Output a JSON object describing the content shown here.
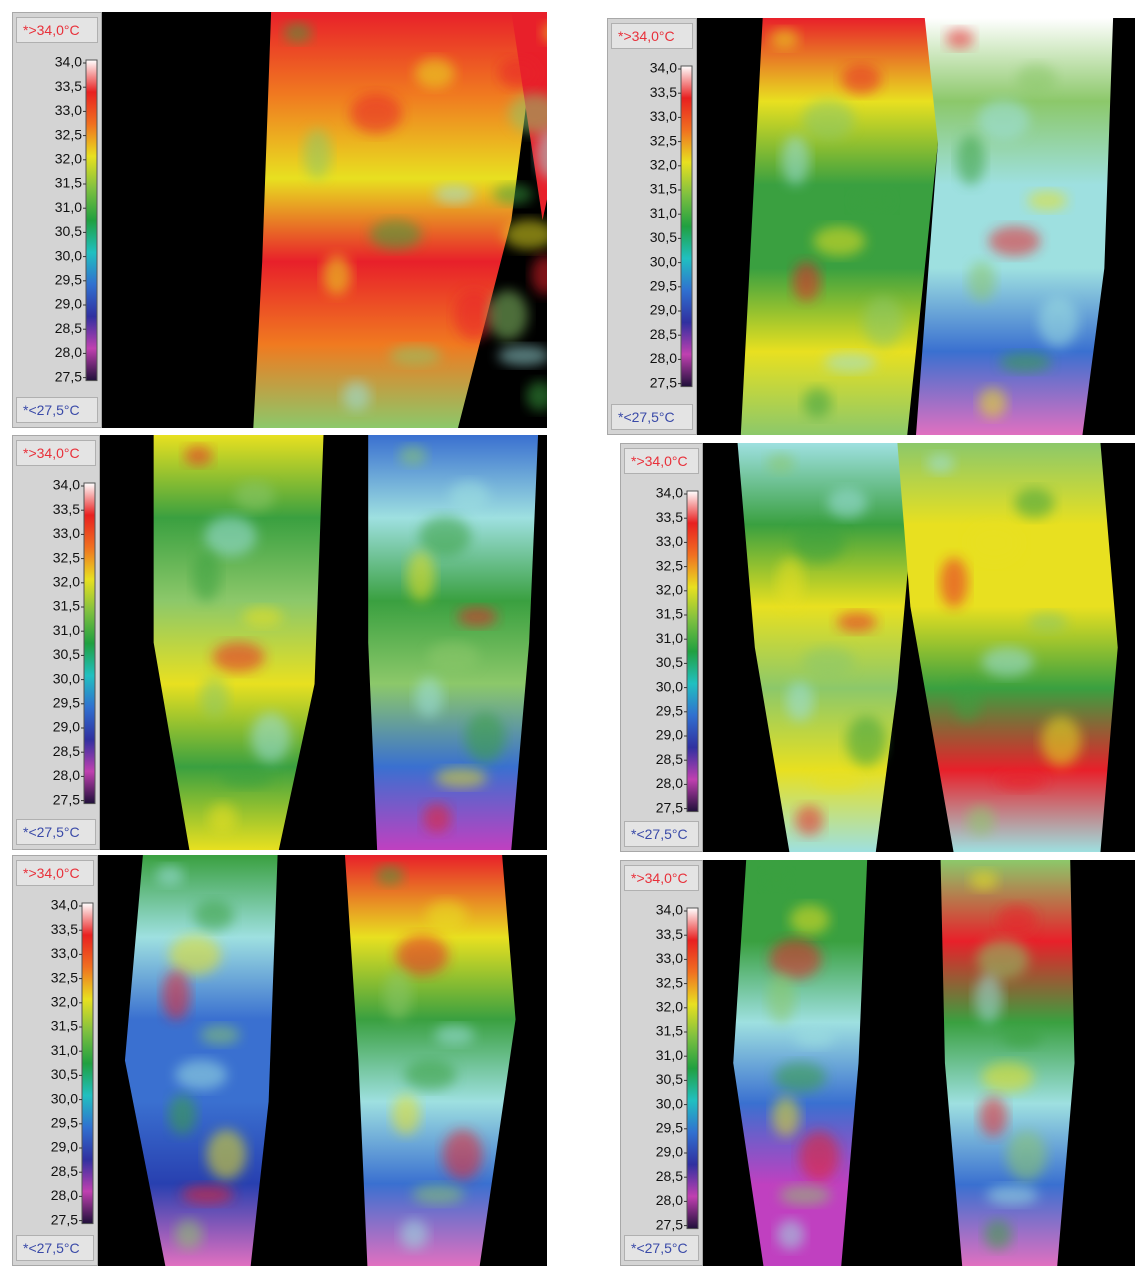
{
  "panels": [
    {
      "max_label": "*>34,0°C",
      "min_label": "*<27,5°C",
      "scale_labels": [
        "34,0",
        "33,5",
        "33,0",
        "32,5",
        "32,0",
        "31,5",
        "31,0",
        "30,5",
        "30,0",
        "29,5",
        "29,0",
        "28,5",
        "28,0",
        "27,5"
      ]
    },
    {
      "max_label": "*>34,0°C",
      "min_label": "*<27,5°C",
      "scale_labels": [
        "34,0",
        "33,5",
        "33,0",
        "32,5",
        "32,0",
        "31,5",
        "31,0",
        "30,5",
        "30,0",
        "29,5",
        "29,0",
        "28,5",
        "28,0",
        "27,5"
      ]
    },
    {
      "max_label": "*>34,0°C",
      "min_label": "*<27,5°C",
      "scale_labels": [
        "34,0",
        "33,5",
        "33,0",
        "32,5",
        "32,0",
        "31,5",
        "31,0",
        "30,5",
        "30,0",
        "29,5",
        "29,0",
        "28,5",
        "28,0",
        "27,5"
      ]
    },
    {
      "max_label": "*>34,0°C",
      "min_label": "*<27,5°C",
      "scale_labels": [
        "34,0",
        "33,5",
        "33,0",
        "32,5",
        "32,0",
        "31,5",
        "31,0",
        "30,5",
        "30,0",
        "29,5",
        "29,0",
        "28,5",
        "28,0",
        "27,5"
      ]
    },
    {
      "max_label": "*>34,0°C",
      "min_label": "*<27,5°C",
      "scale_labels": [
        "34,0",
        "33,5",
        "33,0",
        "32,5",
        "32,0",
        "31,5",
        "31,0",
        "30,5",
        "30,0",
        "29,5",
        "29,0",
        "28,5",
        "28,0",
        "27,5"
      ]
    },
    {
      "max_label": "*>34,0°C",
      "min_label": "*<27,5°C",
      "scale_labels": [
        "34,0",
        "33,5",
        "33,0",
        "32,5",
        "32,0",
        "31,5",
        "31,0",
        "30,5",
        "30,0",
        "29,5",
        "29,0",
        "28,5",
        "28,0",
        "27,5"
      ]
    }
  ]
}
